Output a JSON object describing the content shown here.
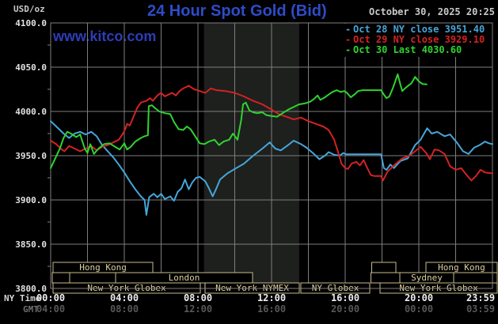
{
  "header": {
    "unit_label": "USD/oz",
    "title": "24 Hour Spot Gold (Bid)",
    "datetime": "October 30, 2025 20:25",
    "watermark": "www.kitco.com"
  },
  "legend": {
    "items": [
      {
        "marker": "-",
        "label": "Oct 28 NY close 3951.40",
        "color": "#46a6d9"
      },
      {
        "marker": "-",
        "label": "Oct 29 NY close 3929.10",
        "color": "#d42222"
      },
      {
        "marker": "-",
        "label": "Oct 30 Last 4030.60",
        "color": "#2fd32f"
      }
    ]
  },
  "axes": {
    "row_label_ny": "NY Time",
    "row_label_gmt": "GMT",
    "y_tick_labels": [
      "4100.0",
      "4050.0",
      "4000.0",
      "3950.0",
      "3900.0",
      "3850.0",
      "3800.0"
    ],
    "x_ny": [
      "00:00",
      "04:00",
      "08:00",
      "12:00",
      "16:00",
      "20:00",
      "23:59"
    ],
    "x_gmt": [
      "04:00",
      "08:00",
      "12:00",
      "16:00",
      "20:00",
      "00:00",
      "03:59"
    ]
  },
  "sessions": {
    "rows": [
      {
        "boxes": [
          {
            "label": "Hong Kong",
            "start": 0.13,
            "end": 5.55
          },
          {
            "label": "",
            "start": 17.45,
            "end": 18.75
          },
          {
            "label": "Hong Kong",
            "start": 20.38,
            "end": 24.26
          }
        ]
      },
      {
        "boxes": [
          {
            "label": "",
            "start": 0.09,
            "end": 1.03
          },
          {
            "label": "",
            "start": 1.03,
            "end": 3.53
          },
          {
            "label": "London",
            "start": 3.53,
            "end": 10.97
          },
          {
            "label": "",
            "start": 17.4,
            "end": 18.96
          },
          {
            "label": "Sydney",
            "start": 18.96,
            "end": 21.9
          },
          {
            "label": "",
            "start": 21.9,
            "end": 24.26
          }
        ]
      },
      {
        "boxes": [
          {
            "label": "New York Globex",
            "start": 0.13,
            "end": 8.13
          },
          {
            "label": "New York NYMEX",
            "start": 8.39,
            "end": 13.5
          },
          {
            "label": "NY Globex",
            "start": 13.6,
            "end": 17.33
          },
          {
            "label": "New York Globex",
            "start": 17.9,
            "end": 24.26
          }
        ]
      }
    ]
  },
  "colors": {
    "background": "#000000",
    "grid": "#7e7e7e",
    "nymex_band": "#1d201d",
    "session_border": "#c9bb8d",
    "session_text": "#ddd0a0",
    "y_tick_text": "#e2e2e2",
    "ny_tick_text": "#ededed",
    "gmt_tick_text": "#575757",
    "title_blue": "#2e4cc9",
    "watermark_blue": "#2d3db6"
  },
  "chart_data": {
    "type": "line",
    "title": "24 Hour Spot Gold (Bid)",
    "ylabel": "USD/oz",
    "x_axis": {
      "range_hours": [
        0,
        24
      ],
      "ticks_ny": [
        "00:00",
        "04:00",
        "08:00",
        "12:00",
        "16:00",
        "20:00",
        "23:59"
      ],
      "ticks_gmt": [
        "04:00",
        "08:00",
        "12:00",
        "16:00",
        "20:00",
        "00:00",
        "03:59"
      ]
    },
    "y_axis": {
      "range": [
        3800,
        4100
      ],
      "ticks": [
        3800,
        3850,
        3900,
        3950,
        4000,
        4050,
        4100
      ],
      "minor_tick_step": 25
    },
    "highlight_band_hours": [
      8.33,
      13.5
    ],
    "grid": true,
    "legend_position": "top-right",
    "series": [
      {
        "name": "Oct 28 NY close",
        "close_value": 3951.4,
        "color": "#46a6d9",
        "points": [
          [
            0,
            3989
          ],
          [
            0.3,
            3983
          ],
          [
            0.7,
            3975
          ],
          [
            1,
            3970
          ],
          [
            1.3,
            3975
          ],
          [
            1.6,
            3977
          ],
          [
            1.9,
            3974
          ],
          [
            2.2,
            3977
          ],
          [
            2.5,
            3972
          ],
          [
            2.8,
            3962
          ],
          [
            3.1,
            3955
          ],
          [
            3.4,
            3948
          ],
          [
            3.7,
            3940
          ],
          [
            4,
            3931
          ],
          [
            4.3,
            3921
          ],
          [
            4.6,
            3912
          ],
          [
            4.9,
            3904
          ],
          [
            5.1,
            3900
          ],
          [
            5.2,
            3883
          ],
          [
            5.35,
            3903
          ],
          [
            5.6,
            3907
          ],
          [
            5.8,
            3903
          ],
          [
            6,
            3907
          ],
          [
            6.2,
            3901
          ],
          [
            6.5,
            3904
          ],
          [
            6.7,
            3899
          ],
          [
            6.9,
            3909
          ],
          [
            7.1,
            3913
          ],
          [
            7.3,
            3923
          ],
          [
            7.5,
            3912
          ],
          [
            7.7,
            3920
          ],
          [
            7.9,
            3925
          ],
          [
            8.1,
            3926
          ],
          [
            8.4,
            3921
          ],
          [
            8.6,
            3913
          ],
          [
            8.8,
            3904
          ],
          [
            9,
            3913
          ],
          [
            9.2,
            3923
          ],
          [
            9.6,
            3930
          ],
          [
            10,
            3935
          ],
          [
            10.5,
            3941
          ],
          [
            11,
            3950
          ],
          [
            11.5,
            3958
          ],
          [
            11.9,
            3965
          ],
          [
            12.2,
            3958
          ],
          [
            12.5,
            3956
          ],
          [
            12.9,
            3962
          ],
          [
            13.2,
            3967
          ],
          [
            13.6,
            3963
          ],
          [
            13.9,
            3959
          ],
          [
            14.3,
            3952
          ],
          [
            14.6,
            3946
          ],
          [
            14.9,
            3950
          ],
          [
            15.1,
            3954
          ],
          [
            15.4,
            3951
          ],
          [
            15.7,
            3950
          ],
          [
            15.9,
            3953
          ],
          [
            16.05,
            3951.5
          ],
          [
            17.95,
            3951.5
          ],
          [
            18.1,
            3936
          ],
          [
            18.25,
            3934
          ],
          [
            18.45,
            3940
          ],
          [
            18.65,
            3936
          ],
          [
            19,
            3944
          ],
          [
            19.4,
            3947
          ],
          [
            19.8,
            3962
          ],
          [
            20.1,
            3968
          ],
          [
            20.45,
            3981
          ],
          [
            20.7,
            3975
          ],
          [
            21,
            3977
          ],
          [
            21.4,
            3972
          ],
          [
            21.7,
            3974
          ],
          [
            22.1,
            3964
          ],
          [
            22.4,
            3955
          ],
          [
            22.7,
            3952
          ],
          [
            23,
            3959
          ],
          [
            23.3,
            3962
          ],
          [
            23.6,
            3966
          ],
          [
            23.8,
            3964
          ],
          [
            24,
            3963
          ]
        ]
      },
      {
        "name": "Oct 29 NY close",
        "close_value": 3929.1,
        "color": "#d42222",
        "points": [
          [
            0,
            3967
          ],
          [
            0.3,
            3963
          ],
          [
            0.6,
            3957
          ],
          [
            0.75,
            3955
          ],
          [
            1,
            3961
          ],
          [
            1.3,
            3958
          ],
          [
            1.6,
            3955
          ],
          [
            1.9,
            3958
          ],
          [
            2.2,
            3961
          ],
          [
            2.5,
            3956
          ],
          [
            2.8,
            3960
          ],
          [
            3.1,
            3962
          ],
          [
            3.4,
            3965
          ],
          [
            3.7,
            3968
          ],
          [
            3.9,
            3974
          ],
          [
            4.05,
            3980
          ],
          [
            4.15,
            3986
          ],
          [
            4.3,
            3984
          ],
          [
            4.5,
            3994
          ],
          [
            4.7,
            4004
          ],
          [
            4.9,
            4010
          ],
          [
            5.2,
            4012
          ],
          [
            5.4,
            4015
          ],
          [
            5.55,
            4012
          ],
          [
            5.8,
            4018
          ],
          [
            6,
            4021
          ],
          [
            6.2,
            4017
          ],
          [
            6.4,
            4019
          ],
          [
            6.6,
            4021
          ],
          [
            6.8,
            4018
          ],
          [
            7,
            4023
          ],
          [
            7.2,
            4026
          ],
          [
            7.5,
            4029
          ],
          [
            7.8,
            4025
          ],
          [
            8.1,
            4023
          ],
          [
            8.4,
            4021
          ],
          [
            8.7,
            4026
          ],
          [
            9,
            4024
          ],
          [
            9.5,
            4023
          ],
          [
            10,
            4021
          ],
          [
            10.5,
            4017
          ],
          [
            11,
            4012
          ],
          [
            11.5,
            4008
          ],
          [
            12,
            4002
          ],
          [
            12.4,
            3997
          ],
          [
            12.8,
            3994
          ],
          [
            13.2,
            3991
          ],
          [
            13.6,
            3993
          ],
          [
            14,
            3989
          ],
          [
            14.4,
            3986
          ],
          [
            14.8,
            3983
          ],
          [
            15.1,
            3979
          ],
          [
            15.4,
            3968
          ],
          [
            15.6,
            3955
          ],
          [
            15.8,
            3941
          ],
          [
            16,
            3936
          ],
          [
            16.15,
            3935
          ],
          [
            16.35,
            3941
          ],
          [
            16.6,
            3943
          ],
          [
            16.8,
            3939
          ],
          [
            17,
            3945
          ],
          [
            17.2,
            3936
          ],
          [
            17.4,
            3928
          ],
          [
            17.6,
            3927
          ],
          [
            17.95,
            3927
          ],
          [
            18.05,
            3922
          ],
          [
            18.3,
            3932
          ],
          [
            18.7,
            3940
          ],
          [
            19.1,
            3947
          ],
          [
            19.5,
            3950
          ],
          [
            19.8,
            3955
          ],
          [
            20.1,
            3960
          ],
          [
            20.4,
            3953
          ],
          [
            20.6,
            3946
          ],
          [
            20.85,
            3957
          ],
          [
            21.1,
            3956
          ],
          [
            21.4,
            3952
          ],
          [
            21.7,
            3938
          ],
          [
            22,
            3934
          ],
          [
            22.3,
            3936
          ],
          [
            22.6,
            3928
          ],
          [
            22.85,
            3922
          ],
          [
            23.1,
            3927
          ],
          [
            23.35,
            3934
          ],
          [
            23.6,
            3931
          ],
          [
            24,
            3930
          ]
        ]
      },
      {
        "name": "Oct 30 Last",
        "last_value": 4030.6,
        "color": "#2fd32f",
        "points": [
          [
            0,
            3936
          ],
          [
            0.25,
            3947
          ],
          [
            0.5,
            3958
          ],
          [
            0.7,
            3970
          ],
          [
            0.9,
            3977
          ],
          [
            1.1,
            3975
          ],
          [
            1.4,
            3971
          ],
          [
            1.6,
            3974
          ],
          [
            1.85,
            3958
          ],
          [
            2,
            3953
          ],
          [
            2.15,
            3963
          ],
          [
            2.35,
            3952
          ],
          [
            2.6,
            3958
          ],
          [
            2.9,
            3963
          ],
          [
            3.2,
            3964
          ],
          [
            3.5,
            3960
          ],
          [
            3.75,
            3957
          ],
          [
            4,
            3964
          ],
          [
            4.15,
            3957
          ],
          [
            4.35,
            3960
          ],
          [
            4.6,
            3966
          ],
          [
            4.9,
            3970
          ],
          [
            5.1,
            3972
          ],
          [
            5.28,
            3973
          ],
          [
            5.33,
            4006
          ],
          [
            5.5,
            4007
          ],
          [
            5.65,
            4004
          ],
          [
            5.9,
            4000
          ],
          [
            6.2,
            3998
          ],
          [
            6.5,
            3997
          ],
          [
            6.7,
            3988
          ],
          [
            6.95,
            3980
          ],
          [
            7.2,
            3979
          ],
          [
            7.4,
            3983
          ],
          [
            7.6,
            3980
          ],
          [
            7.85,
            3972
          ],
          [
            8.1,
            3964
          ],
          [
            8.35,
            3963
          ],
          [
            8.6,
            3966
          ],
          [
            8.9,
            3968
          ],
          [
            9.15,
            3962
          ],
          [
            9.4,
            3966
          ],
          [
            9.7,
            3968
          ],
          [
            9.9,
            3975
          ],
          [
            10.15,
            3968
          ],
          [
            10.35,
            3990
          ],
          [
            10.45,
            4008
          ],
          [
            10.6,
            4010
          ],
          [
            10.8,
            4001
          ],
          [
            11,
            3999
          ],
          [
            11.2,
            3998
          ],
          [
            11.5,
            3999
          ],
          [
            11.7,
            3996
          ],
          [
            11.95,
            3995
          ],
          [
            12.3,
            3994
          ],
          [
            12.6,
            3998
          ],
          [
            12.9,
            4002
          ],
          [
            13.2,
            4005
          ],
          [
            13.5,
            4008
          ],
          [
            13.8,
            4009
          ],
          [
            14.1,
            4011
          ],
          [
            14.3,
            4014
          ],
          [
            14.5,
            4018
          ],
          [
            14.65,
            4013
          ],
          [
            14.9,
            4016
          ],
          [
            15.1,
            4019
          ],
          [
            15.3,
            4022
          ],
          [
            15.55,
            4024
          ],
          [
            15.75,
            4022
          ],
          [
            15.95,
            4023
          ],
          [
            16.1,
            4021
          ],
          [
            16.3,
            4016
          ],
          [
            16.5,
            4019
          ],
          [
            16.7,
            4023
          ],
          [
            16.95,
            4024
          ],
          [
            17.95,
            4024
          ],
          [
            18.1,
            4019
          ],
          [
            18.25,
            4015
          ],
          [
            18.4,
            4017
          ],
          [
            18.6,
            4027
          ],
          [
            18.85,
            4042
          ],
          [
            19,
            4030
          ],
          [
            19.1,
            4023
          ],
          [
            19.3,
            4027
          ],
          [
            19.6,
            4032
          ],
          [
            19.8,
            4039
          ],
          [
            20,
            4034
          ],
          [
            20.2,
            4031
          ],
          [
            20.42,
            4030.6
          ]
        ]
      }
    ]
  }
}
